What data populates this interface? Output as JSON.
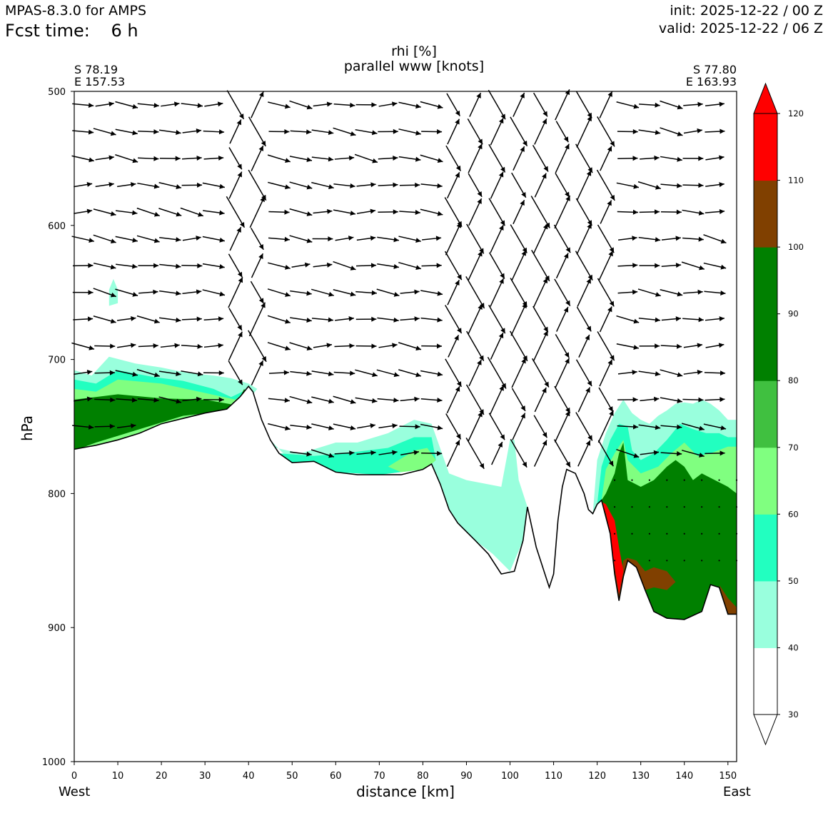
{
  "header": {
    "model": "MPAS-8.3.0 for AMPS",
    "fcst_label": "Fcst time:",
    "fcst_value": "6 h",
    "init": "init: 2025-12-22 / 00 Z",
    "valid": "valid: 2025-12-22 / 06 Z"
  },
  "chart_data": {
    "type": "cross-section",
    "title": "rhi [%]",
    "subtitle": "parallel www [knots]",
    "xlabel": "distance [km]",
    "ylabel": "hPa",
    "xlim": [
      0,
      152
    ],
    "ylim": [
      1000,
      500
    ],
    "x_ticks": [
      0,
      10,
      20,
      30,
      40,
      50,
      60,
      70,
      80,
      90,
      100,
      110,
      120,
      130,
      140,
      150
    ],
    "y_ticks": [
      500,
      600,
      700,
      800,
      900,
      1000
    ],
    "left_end": {
      "lat": "S 78.19",
      "lon": "E 157.53",
      "direction": "West"
    },
    "right_end": {
      "lat": "S 77.80",
      "lon": "E 163.93",
      "direction": "East"
    },
    "colorbar": {
      "levels": [
        30,
        40,
        50,
        60,
        70,
        80,
        90,
        100,
        110,
        120
      ],
      "colors": [
        "#ffffff",
        "#99ffdd",
        "#22ffc0",
        "#80ff80",
        "#40c040",
        "#008000",
        "#008000",
        "#804000",
        "#ff0000"
      ],
      "extend": "both"
    },
    "terrain_surface": [
      [
        0,
        767
      ],
      [
        5,
        764
      ],
      [
        10,
        760
      ],
      [
        15,
        755
      ],
      [
        20,
        748
      ],
      [
        25,
        744
      ],
      [
        30,
        740
      ],
      [
        35,
        737
      ],
      [
        38,
        728
      ],
      [
        40,
        720
      ],
      [
        41,
        724
      ],
      [
        43,
        745
      ],
      [
        45,
        760
      ],
      [
        47,
        770
      ],
      [
        50,
        777
      ],
      [
        55,
        776
      ],
      [
        60,
        784
      ],
      [
        65,
        786
      ],
      [
        70,
        786
      ],
      [
        75,
        786
      ],
      [
        80,
        782
      ],
      [
        82,
        778
      ],
      [
        84,
        793
      ],
      [
        86,
        812
      ],
      [
        88,
        822
      ],
      [
        92,
        835
      ],
      [
        95,
        845
      ],
      [
        98,
        860
      ],
      [
        101,
        858
      ],
      [
        103,
        835
      ],
      [
        104,
        810
      ],
      [
        106,
        840
      ],
      [
        108,
        860
      ],
      [
        109,
        870
      ],
      [
        110,
        860
      ],
      [
        111,
        820
      ],
      [
        112,
        795
      ],
      [
        113,
        782
      ],
      [
        115,
        785
      ],
      [
        117,
        800
      ],
      [
        118,
        812
      ],
      [
        119,
        815
      ],
      [
        120,
        808
      ],
      [
        121,
        805
      ],
      [
        123,
        830
      ],
      [
        124,
        860
      ],
      [
        125,
        880
      ],
      [
        126,
        862
      ],
      [
        127,
        850
      ],
      [
        129,
        855
      ],
      [
        131,
        872
      ],
      [
        133,
        888
      ],
      [
        136,
        893
      ],
      [
        140,
        894
      ],
      [
        144,
        888
      ],
      [
        146,
        868
      ],
      [
        148,
        870
      ],
      [
        150,
        890
      ],
      [
        152,
        890
      ]
    ],
    "rhi_regions": [
      {
        "rhi": 45,
        "points": [
          [
            0,
            708
          ],
          [
            4,
            712
          ],
          [
            8,
            698
          ],
          [
            14,
            703
          ],
          [
            20,
            706
          ],
          [
            26,
            710
          ],
          [
            32,
            712
          ],
          [
            36,
            714
          ],
          [
            40,
            718
          ],
          [
            42,
            722
          ],
          [
            41,
            726
          ],
          [
            38,
            738
          ],
          [
            0,
            768
          ]
        ]
      },
      {
        "rhi": 55,
        "points": [
          [
            0,
            715
          ],
          [
            5,
            718
          ],
          [
            10,
            708
          ],
          [
            18,
            713
          ],
          [
            25,
            716
          ],
          [
            32,
            722
          ],
          [
            36,
            728
          ],
          [
            40,
            722
          ],
          [
            41,
            728
          ],
          [
            38,
            738
          ],
          [
            0,
            768
          ]
        ]
      },
      {
        "rhi": 65,
        "points": [
          [
            0,
            722
          ],
          [
            5,
            724
          ],
          [
            10,
            715
          ],
          [
            20,
            718
          ],
          [
            30,
            725
          ],
          [
            37,
            730
          ],
          [
            40,
            722
          ],
          [
            40,
            730
          ],
          [
            37,
            738
          ],
          [
            0,
            768
          ]
        ]
      },
      {
        "rhi": 85,
        "points": [
          [
            0,
            730
          ],
          [
            10,
            726
          ],
          [
            20,
            729
          ],
          [
            30,
            730
          ],
          [
            37,
            734
          ],
          [
            39,
            722
          ],
          [
            40,
            728
          ],
          [
            36,
            738
          ],
          [
            25,
            742
          ],
          [
            15,
            752
          ],
          [
            5,
            762
          ],
          [
            0,
            768
          ]
        ]
      },
      {
        "rhi": 45,
        "points": [
          [
            45,
            765
          ],
          [
            52,
            770
          ],
          [
            60,
            762
          ],
          [
            65,
            762
          ],
          [
            72,
            755
          ],
          [
            78,
            745
          ],
          [
            82,
            748
          ],
          [
            86,
            785
          ],
          [
            90,
            790
          ],
          [
            98,
            795
          ],
          [
            100,
            760
          ],
          [
            101,
            760
          ],
          [
            102,
            790
          ],
          [
            104,
            810
          ],
          [
            103,
            835
          ],
          [
            100,
            858
          ],
          [
            96,
            845
          ],
          [
            90,
            830
          ],
          [
            86,
            812
          ],
          [
            84,
            792
          ],
          [
            82,
            778
          ],
          [
            80,
            782
          ],
          [
            70,
            786
          ],
          [
            60,
            784
          ],
          [
            50,
            777
          ],
          [
            45,
            760
          ]
        ]
      },
      {
        "rhi": 55,
        "points": [
          [
            47,
            770
          ],
          [
            55,
            772
          ],
          [
            62,
            770
          ],
          [
            72,
            766
          ],
          [
            78,
            758
          ],
          [
            82,
            758
          ],
          [
            83,
            775
          ],
          [
            82,
            778
          ],
          [
            80,
            782
          ],
          [
            70,
            786
          ],
          [
            60,
            784
          ],
          [
            50,
            777
          ]
        ]
      },
      {
        "rhi": 65,
        "points": [
          [
            72,
            780
          ],
          [
            78,
            768
          ],
          [
            81,
            766
          ],
          [
            83,
            775
          ],
          [
            82,
            778
          ],
          [
            80,
            782
          ],
          [
            75,
            784
          ]
        ]
      },
      {
        "rhi": 45,
        "points": [
          [
            119,
            815
          ],
          [
            120,
            775
          ],
          [
            122,
            755
          ],
          [
            124,
            740
          ],
          [
            126,
            730
          ],
          [
            128,
            740
          ],
          [
            130,
            745
          ],
          [
            132,
            748
          ],
          [
            134,
            742
          ],
          [
            136,
            738
          ],
          [
            138,
            733
          ],
          [
            140,
            732
          ],
          [
            142,
            733
          ],
          [
            144,
            730
          ],
          [
            146,
            733
          ],
          [
            148,
            738
          ],
          [
            150,
            745
          ],
          [
            152,
            745
          ],
          [
            152,
            890
          ],
          [
            150,
            890
          ],
          [
            148,
            870
          ],
          [
            146,
            868
          ],
          [
            144,
            888
          ],
          [
            140,
            894
          ],
          [
            136,
            893
          ],
          [
            133,
            888
          ],
          [
            131,
            872
          ],
          [
            129,
            855
          ],
          [
            127,
            850
          ],
          [
            126,
            862
          ],
          [
            125,
            880
          ],
          [
            124,
            860
          ],
          [
            123,
            830
          ],
          [
            121,
            805
          ],
          [
            120,
            808
          ]
        ]
      },
      {
        "rhi": 55,
        "points": [
          [
            120,
            808
          ],
          [
            121,
            780
          ],
          [
            123,
            760
          ],
          [
            125,
            748
          ],
          [
            127,
            750
          ],
          [
            128,
            768
          ],
          [
            130,
            775
          ],
          [
            133,
            770
          ],
          [
            136,
            760
          ],
          [
            139,
            748
          ],
          [
            142,
            752
          ],
          [
            145,
            755
          ],
          [
            148,
            755
          ],
          [
            150,
            758
          ],
          [
            152,
            758
          ],
          [
            152,
            890
          ],
          [
            150,
            890
          ],
          [
            148,
            870
          ],
          [
            146,
            868
          ],
          [
            144,
            888
          ],
          [
            140,
            894
          ],
          [
            136,
            893
          ],
          [
            133,
            888
          ],
          [
            131,
            872
          ],
          [
            129,
            855
          ],
          [
            127,
            850
          ],
          [
            126,
            862
          ],
          [
            125,
            880
          ],
          [
            124,
            860
          ],
          [
            123,
            830
          ],
          [
            121,
            805
          ]
        ]
      },
      {
        "rhi": 65,
        "points": [
          [
            121,
            805
          ],
          [
            122,
            782
          ],
          [
            124,
            770
          ],
          [
            126,
            760
          ],
          [
            127,
            775
          ],
          [
            130,
            785
          ],
          [
            134,
            780
          ],
          [
            137,
            770
          ],
          [
            140,
            762
          ],
          [
            143,
            772
          ],
          [
            146,
            770
          ],
          [
            150,
            765
          ],
          [
            152,
            765
          ],
          [
            152,
            890
          ],
          [
            150,
            890
          ],
          [
            148,
            870
          ],
          [
            146,
            868
          ],
          [
            144,
            888
          ],
          [
            140,
            894
          ],
          [
            136,
            893
          ],
          [
            133,
            888
          ],
          [
            131,
            872
          ],
          [
            129,
            855
          ],
          [
            127,
            850
          ],
          [
            126,
            862
          ],
          [
            125,
            880
          ],
          [
            124,
            860
          ],
          [
            123,
            830
          ]
        ]
      },
      {
        "rhi": 85,
        "points": [
          [
            121,
            805
          ],
          [
            122,
            800
          ],
          [
            124,
            785
          ],
          [
            125,
            770
          ],
          [
            126,
            762
          ],
          [
            127,
            790
          ],
          [
            130,
            795
          ],
          [
            133,
            790
          ],
          [
            136,
            780
          ],
          [
            138,
            775
          ],
          [
            140,
            780
          ],
          [
            142,
            790
          ],
          [
            144,
            785
          ],
          [
            147,
            790
          ],
          [
            150,
            795
          ],
          [
            152,
            800
          ],
          [
            152,
            890
          ],
          [
            150,
            890
          ],
          [
            148,
            870
          ],
          [
            146,
            868
          ],
          [
            144,
            888
          ],
          [
            140,
            894
          ],
          [
            136,
            893
          ],
          [
            133,
            888
          ],
          [
            131,
            872
          ],
          [
            129,
            855
          ],
          [
            127,
            850
          ],
          [
            126,
            862
          ],
          [
            125,
            880
          ],
          [
            124,
            860
          ],
          [
            123,
            830
          ]
        ]
      },
      {
        "rhi": 105,
        "points": [
          [
            123,
            825
          ],
          [
            124,
            848
          ],
          [
            125,
            870
          ],
          [
            126,
            850
          ],
          [
            127,
            848
          ],
          [
            129,
            850
          ],
          [
            131,
            858
          ],
          [
            133,
            855
          ],
          [
            136,
            858
          ],
          [
            138,
            866
          ],
          [
            136,
            872
          ],
          [
            133,
            870
          ],
          [
            131,
            872
          ],
          [
            129,
            855
          ],
          [
            127,
            850
          ],
          [
            126,
            862
          ],
          [
            125,
            880
          ],
          [
            124,
            860
          ]
        ]
      },
      {
        "rhi": 105,
        "points": [
          [
            148,
            868
          ],
          [
            150,
            878
          ],
          [
            152,
            885
          ],
          [
            152,
            890
          ],
          [
            150,
            890
          ]
        ]
      },
      {
        "rhi": 115,
        "points": [
          [
            121,
            806
          ],
          [
            122,
            815
          ],
          [
            123,
            830
          ],
          [
            124,
            855
          ],
          [
            125,
            875
          ],
          [
            126,
            858
          ],
          [
            125,
            840
          ],
          [
            124,
            820
          ],
          [
            122,
            808
          ]
        ]
      },
      {
        "rhi": 45,
        "points": [
          [
            8,
            648
          ],
          [
            9,
            640
          ],
          [
            10,
            648
          ],
          [
            10,
            658
          ],
          [
            8,
            660
          ]
        ]
      }
    ],
    "wind_arrows": [
      {
        "levels": [
          510,
          530,
          550,
          570,
          590,
          610,
          630,
          650,
          670,
          690,
          710,
          730,
          750,
          770
        ],
        "x_step": 5
      }
    ]
  }
}
